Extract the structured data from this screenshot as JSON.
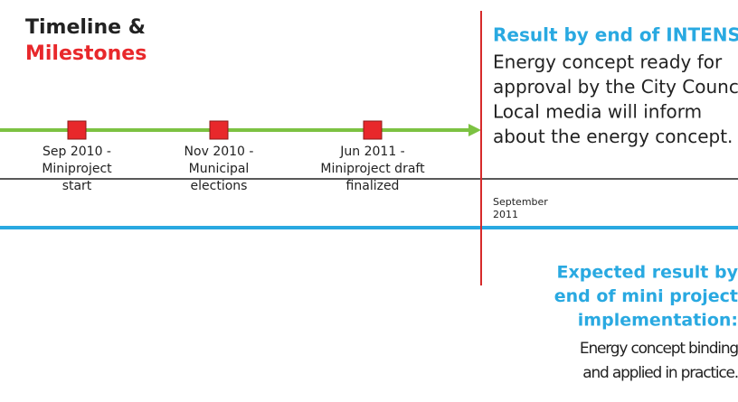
{
  "title": [
    "Timeline &",
    "Milestones"
  ],
  "milestones": [
    {
      "lines": [
        "Sep 2010 -",
        "Miniproject",
        "start"
      ]
    },
    {
      "lines": [
        "Nov 2010 -",
        "Municipal",
        "elections"
      ]
    },
    {
      "lines": [
        "Jun 2011 -",
        "Miniproject draft",
        "finalized"
      ]
    }
  ],
  "result": {
    "heading": "Result by end of INTENSE:",
    "lines": [
      "Energy concept ready for",
      "approval by the City Council.",
      "Local media will inform",
      "about the energy concept."
    ]
  },
  "date": [
    "September",
    "2011"
  ],
  "expected": {
    "heading": [
      "Expected result by",
      "end of mini project",
      "implementation:"
    ],
    "lines": [
      "Energy concept binding",
      "and applied in practice."
    ]
  }
}
